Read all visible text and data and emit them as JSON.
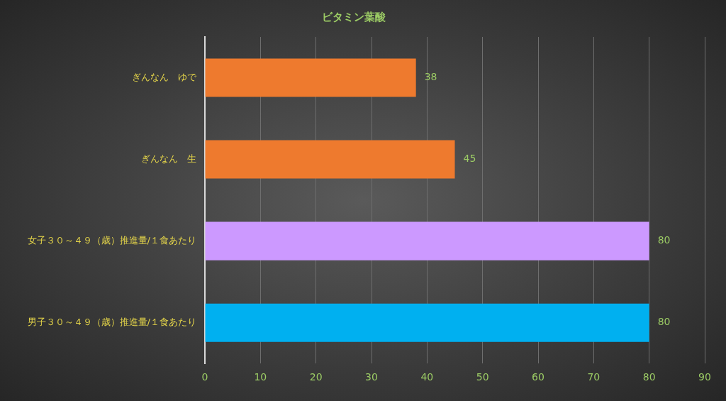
{
  "chart_data": {
    "type": "bar",
    "orientation": "horizontal",
    "title": "ビタミン葉酸",
    "categories": [
      "ぎんなん　ゆで",
      "ぎんなん　生",
      "女子３０～４９（歳）推進量/１食あたり",
      "男子３０～４９（歳）推進量/１食あたり"
    ],
    "values": [
      38,
      45,
      80,
      80
    ],
    "colors": [
      "#ee7a2e",
      "#ee7a2e",
      "#cc99ff",
      "#00b0f0"
    ],
    "xlim": [
      0,
      90
    ],
    "xticks": [
      0,
      10,
      20,
      30,
      40,
      50,
      60,
      70,
      80,
      90
    ],
    "grid": "x",
    "legend": false,
    "data_labels": true
  }
}
